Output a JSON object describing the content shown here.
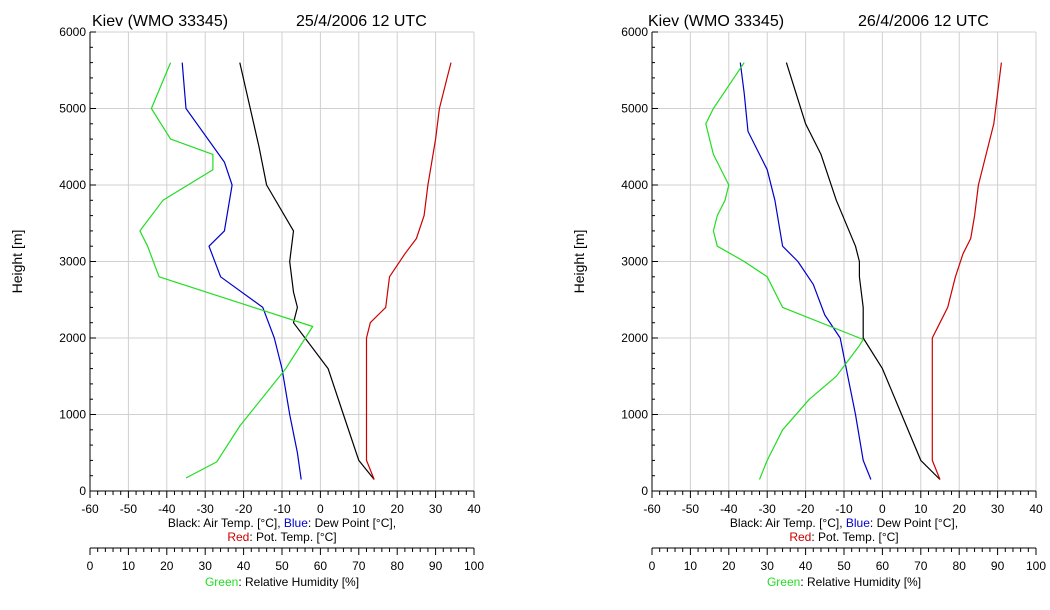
{
  "colors": {
    "air_temp": "#000000",
    "dew_point": "#0000cc",
    "pot_temp": "#cc0000",
    "rel_humidity": "#22dd22",
    "grid": "#d0d0d0"
  },
  "chart_data": [
    {
      "type": "line",
      "title_station": "Kiev (WMO 33345)",
      "title_date": "25/4/2006 12 UTC",
      "ylabel": "Height [m]",
      "ylim": [
        0,
        6000
      ],
      "yticks": [
        "0",
        "1000",
        "2000",
        "3000",
        "4000",
        "5000",
        "6000"
      ],
      "xlim_temp": [
        -60,
        40
      ],
      "xticks_temp": [
        "-60",
        "-50",
        "-40",
        "-30",
        "-20",
        "-10",
        "0",
        "10",
        "20",
        "30",
        "40"
      ],
      "xlim_rh": [
        0,
        100
      ],
      "xticks_rh": [
        "0",
        "10",
        "20",
        "30",
        "40",
        "50",
        "60",
        "70",
        "80",
        "90",
        "100"
      ],
      "xlabel_temp": {
        "black_word": "Black",
        "black_rest": ": Air Temp. [°C], ",
        "blue_word": "Blue",
        "blue_rest": ": Dew Point [°C],",
        "red_word": "Red",
        "red_rest": ": Pot. Temp. [°C]"
      },
      "xlabel_rh": {
        "green_word": "Green",
        "green_rest": ": Relative Humidity [%]"
      },
      "grid": true,
      "series": [
        {
          "key": "air_temp",
          "axis": "temp",
          "points": [
            [
              14,
              150
            ],
            [
              10,
              400
            ],
            [
              6,
              1000
            ],
            [
              2,
              1600
            ],
            [
              -7,
              2200
            ],
            [
              -6,
              2400
            ],
            [
              -7,
              2600
            ],
            [
              -8,
              3000
            ],
            [
              -7,
              3400
            ],
            [
              -14,
              4000
            ],
            [
              -16,
              4500
            ],
            [
              -21,
              5600
            ]
          ]
        },
        {
          "key": "dew_point",
          "axis": "temp",
          "points": [
            [
              -5,
              150
            ],
            [
              -6,
              500
            ],
            [
              -8,
              1000
            ],
            [
              -10,
              1600
            ],
            [
              -12,
              2000
            ],
            [
              -15,
              2400
            ],
            [
              -26,
              2800
            ],
            [
              -29,
              3200
            ],
            [
              -25,
              3400
            ],
            [
              -23,
              4000
            ],
            [
              -25,
              4300
            ],
            [
              -35,
              5000
            ],
            [
              -36,
              5600
            ]
          ]
        },
        {
          "key": "pot_temp",
          "axis": "temp",
          "points": [
            [
              14,
              150
            ],
            [
              12,
              400
            ],
            [
              12,
              1000
            ],
            [
              12,
              1600
            ],
            [
              12,
              2000
            ],
            [
              13,
              2200
            ],
            [
              17,
              2400
            ],
            [
              18,
              2800
            ],
            [
              22,
              3100
            ],
            [
              25,
              3300
            ],
            [
              27,
              3600
            ],
            [
              28,
              4000
            ],
            [
              30,
              4600
            ],
            [
              31,
              5000
            ],
            [
              33,
              5400
            ],
            [
              34,
              5600
            ]
          ]
        },
        {
          "key": "rel_humidity",
          "axis": "rh",
          "points": [
            [
              25,
              170
            ],
            [
              33,
              380
            ],
            [
              39,
              850
            ],
            [
              51,
              1600
            ],
            [
              58,
              2150
            ],
            [
              18,
              2800
            ],
            [
              15,
              3200
            ],
            [
              13,
              3400
            ],
            [
              19,
              3800
            ],
            [
              32,
              4200
            ],
            [
              32,
              4400
            ],
            [
              21,
              4600
            ],
            [
              16,
              5000
            ],
            [
              21,
              5600
            ]
          ]
        }
      ]
    },
    {
      "type": "line",
      "title_station": "Kiev (WMO 33345)",
      "title_date": "26/4/2006 12 UTC",
      "ylabel": "Height [m]",
      "ylim": [
        0,
        6000
      ],
      "yticks": [
        "0",
        "1000",
        "2000",
        "3000",
        "4000",
        "5000",
        "6000"
      ],
      "xlim_temp": [
        -60,
        40
      ],
      "xticks_temp": [
        "-60",
        "-50",
        "-40",
        "-30",
        "-20",
        "-10",
        "0",
        "10",
        "20",
        "30",
        "40"
      ],
      "xlim_rh": [
        0,
        100
      ],
      "xticks_rh": [
        "0",
        "10",
        "20",
        "30",
        "40",
        "50",
        "60",
        "70",
        "80",
        "90",
        "100"
      ],
      "xlabel_temp": {
        "black_word": "Black",
        "black_rest": ": Air Temp. [°C], ",
        "blue_word": "Blue",
        "blue_rest": ": Dew Point [°C],",
        "red_word": "Red",
        "red_rest": ": Pot. Temp. [°C]"
      },
      "xlabel_rh": {
        "green_word": "Green",
        "green_rest": ": Relative Humidity [%]"
      },
      "grid": true,
      "series": [
        {
          "key": "air_temp",
          "axis": "temp",
          "points": [
            [
              15,
              150
            ],
            [
              10,
              400
            ],
            [
              5,
              1000
            ],
            [
              0,
              1600
            ],
            [
              -5,
              2000
            ],
            [
              -5,
              2400
            ],
            [
              -6,
              2800
            ],
            [
              -6,
              3000
            ],
            [
              -7,
              3200
            ],
            [
              -12,
              3800
            ],
            [
              -16,
              4400
            ],
            [
              -20,
              4800
            ],
            [
              -25,
              5600
            ]
          ]
        },
        {
          "key": "dew_point",
          "axis": "temp",
          "points": [
            [
              -3,
              150
            ],
            [
              -5,
              400
            ],
            [
              -7,
              1000
            ],
            [
              -9,
              1500
            ],
            [
              -11,
              2000
            ],
            [
              -15,
              2300
            ],
            [
              -18,
              2700
            ],
            [
              -22,
              3000
            ],
            [
              -26,
              3200
            ],
            [
              -28,
              3800
            ],
            [
              -30,
              4200
            ],
            [
              -35,
              4700
            ],
            [
              -36,
              5200
            ],
            [
              -37,
              5600
            ]
          ]
        },
        {
          "key": "pot_temp",
          "axis": "temp",
          "points": [
            [
              15,
              150
            ],
            [
              13,
              400
            ],
            [
              13,
              1000
            ],
            [
              13,
              1600
            ],
            [
              13,
              2000
            ],
            [
              15,
              2200
            ],
            [
              17,
              2400
            ],
            [
              19,
              2800
            ],
            [
              21,
              3100
            ],
            [
              23,
              3300
            ],
            [
              24,
              3600
            ],
            [
              25,
              4000
            ],
            [
              27,
              4400
            ],
            [
              29,
              4800
            ],
            [
              30,
              5200
            ],
            [
              31,
              5600
            ]
          ]
        },
        {
          "key": "rel_humidity",
          "axis": "rh",
          "points": [
            [
              28,
              150
            ],
            [
              30,
              400
            ],
            [
              34,
              800
            ],
            [
              41,
              1200
            ],
            [
              48,
              1500
            ],
            [
              54,
              1900
            ],
            [
              55,
              1980
            ],
            [
              34,
              2400
            ],
            [
              30,
              2800
            ],
            [
              24,
              3000
            ],
            [
              17,
              3200
            ],
            [
              16,
              3400
            ],
            [
              17,
              3600
            ],
            [
              19,
              3800
            ],
            [
              20,
              4000
            ],
            [
              16,
              4400
            ],
            [
              14,
              4800
            ],
            [
              16,
              5000
            ],
            [
              20,
              5300
            ],
            [
              24,
              5600
            ]
          ]
        }
      ]
    }
  ]
}
